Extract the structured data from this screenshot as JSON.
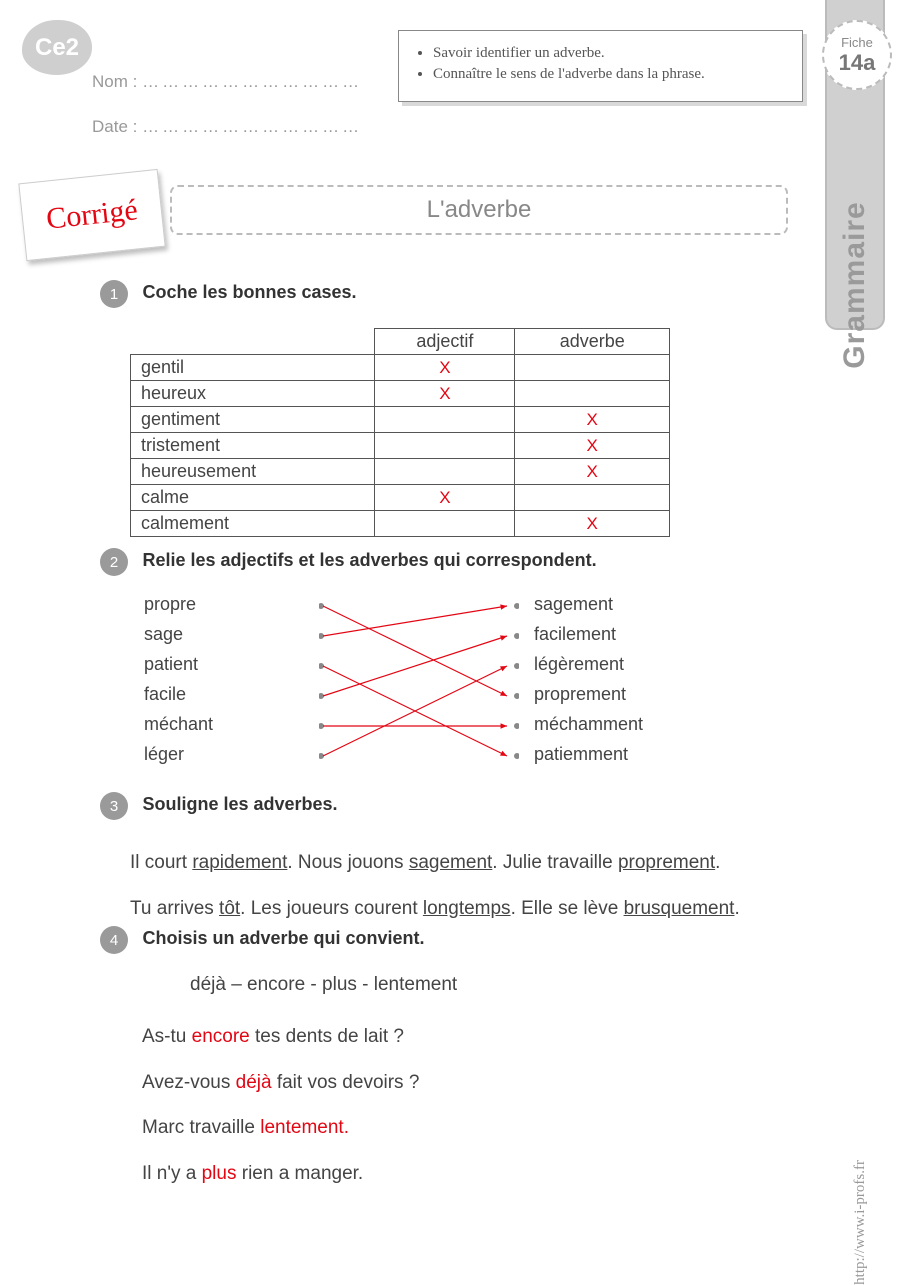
{
  "class_level": "Ce2",
  "labels": {
    "nom": "Nom :",
    "date": "Date :",
    "dots": "……………………………"
  },
  "objectives": [
    "Savoir identifier un adverbe.",
    "Connaître le sens de l'adverbe dans la phrase."
  ],
  "side_tab": {
    "fiche_label": "Fiche",
    "fiche_num": "14a",
    "subject": "Grammaire"
  },
  "sticker": "Corrigé",
  "title": "L'adverbe",
  "ex1": {
    "num": "1",
    "title": "Coche les bonnes cases.",
    "headers": [
      "",
      "adjectif",
      "adverbe"
    ],
    "rows": [
      {
        "word": "gentil",
        "adj": "X",
        "adv": ""
      },
      {
        "word": "heureux",
        "adj": "X",
        "adv": ""
      },
      {
        "word": "gentiment",
        "adj": "",
        "adv": "X"
      },
      {
        "word": "tristement",
        "adj": "",
        "adv": "X"
      },
      {
        "word": "heureusement",
        "adj": "",
        "adv": "X"
      },
      {
        "word": "calme",
        "adj": "X",
        "adv": ""
      },
      {
        "word": "calmement",
        "adj": "",
        "adv": "X"
      }
    ],
    "colors": {
      "mark": "#e30613"
    }
  },
  "ex2": {
    "num": "2",
    "title": "Relie les adjectifs et les adverbes qui correspondent.",
    "left": [
      "propre",
      "sage",
      "patient",
      "facile",
      "méchant",
      "léger"
    ],
    "right": [
      "sagement",
      "facilement",
      "légèrement",
      "proprement",
      "méchamment",
      "patiemment"
    ],
    "pairs": [
      {
        "from": 0,
        "to": 3
      },
      {
        "from": 1,
        "to": 0
      },
      {
        "from": 2,
        "to": 5
      },
      {
        "from": 3,
        "to": 1
      },
      {
        "from": 4,
        "to": 4
      },
      {
        "from": 5,
        "to": 2
      }
    ],
    "line_color": "#e30613"
  },
  "ex3": {
    "num": "3",
    "title": "Souligne les adverbes.",
    "lines": [
      [
        {
          "t": "Il court "
        },
        {
          "t": "rapidement",
          "u": true
        },
        {
          "t": ".  Nous jouons "
        },
        {
          "t": "sagement",
          "u": true
        },
        {
          "t": ".  Julie travaille "
        },
        {
          "t": "proprement",
          "u": true
        },
        {
          "t": "."
        }
      ],
      [
        {
          "t": "Tu arrives "
        },
        {
          "t": "tôt",
          "u": true
        },
        {
          "t": ".  Les joueurs courent "
        },
        {
          "t": "longtemps",
          "u": true
        },
        {
          "t": ".  Elle se lève "
        },
        {
          "t": "brusquement",
          "u": true
        },
        {
          "t": "."
        }
      ]
    ]
  },
  "ex4": {
    "num": "4",
    "title": "Choisis un adverbe qui convient.",
    "options": "déjà – encore - plus - lentement",
    "lines": [
      [
        {
          "t": "As-tu "
        },
        {
          "t": "encore",
          "r": true
        },
        {
          "t": " tes dents de lait ?"
        }
      ],
      [
        {
          "t": "Avez-vous "
        },
        {
          "t": "déjà",
          "r": true
        },
        {
          "t": " fait vos devoirs ?"
        }
      ],
      [
        {
          "t": "Marc travaille "
        },
        {
          "t": "lentement.",
          "r": true
        }
      ],
      [
        {
          "t": "Il n'y a "
        },
        {
          "t": "plus",
          "r": true
        },
        {
          "t": " rien a manger."
        }
      ]
    ]
  },
  "footer_url": "http://www.i-profs.fr"
}
